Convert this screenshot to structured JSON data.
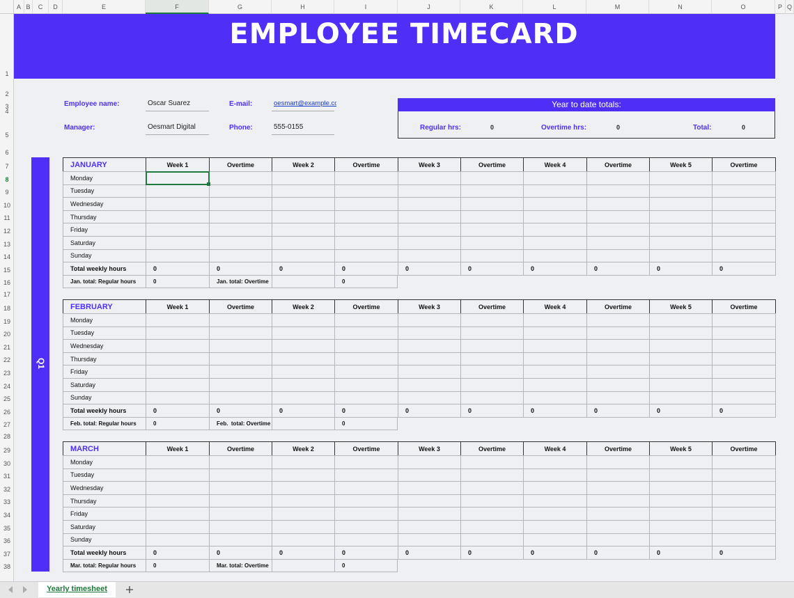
{
  "column_headers": [
    "A",
    "B",
    "C",
    "D",
    "E",
    "F",
    "G",
    "H",
    "I",
    "J",
    "K",
    "L",
    "M",
    "N",
    "O",
    "P",
    "Q"
  ],
  "row_headers": [
    1,
    2,
    3,
    4,
    5,
    6,
    7,
    8,
    9,
    10,
    11,
    12,
    13,
    14,
    15,
    16,
    17,
    18,
    19,
    20,
    21,
    22,
    23,
    24,
    25,
    26,
    27,
    28,
    29,
    30,
    31,
    32,
    33,
    34,
    35,
    36,
    37,
    38
  ],
  "title": "EMPLOYEE TIMECARD",
  "employee": {
    "name_label": "Employee name:",
    "name": "Oscar Suarez",
    "email_label": "E-mail:",
    "email": "oesmart@example.com",
    "manager_label": "Manager:",
    "manager": "Oesmart Digital",
    "phone_label": "Phone:",
    "phone": "555-0155"
  },
  "ytd": {
    "title": "Year to date totals:",
    "regular_label": "Regular hrs:",
    "regular": 0,
    "overtime_label": "Overtime hrs:",
    "overtime": 0,
    "total_label": "Total:",
    "total": 0
  },
  "quarter": "Q1",
  "months": [
    {
      "name": "JANUARY",
      "columns": [
        "Week 1",
        "Overtime",
        "Week 2",
        "Overtime",
        "Week 3",
        "Overtime",
        "Week 4",
        "Overtime",
        "Week 5",
        "Overtime"
      ],
      "days": [
        "Monday",
        "Tuesday",
        "Wednesday",
        "Thursday",
        "Friday",
        "Saturday",
        "Sunday"
      ],
      "total_label": "Total weekly hours",
      "totals": [
        0,
        0,
        0,
        0,
        0,
        0,
        0,
        0,
        0,
        0
      ],
      "regular_label": "Jan. total: Regular hours",
      "regular": 0,
      "overtime_label": "Jan. total: Overtime",
      "overtime": 0
    },
    {
      "name": "FEBRUARY",
      "columns": [
        "Week 1",
        "Overtime",
        "Week 2",
        "Overtime",
        "Week 3",
        "Overtime",
        "Week 4",
        "Overtime",
        "Week 5",
        "Overtime"
      ],
      "days": [
        "Monday",
        "Tuesday",
        "Wednesday",
        "Thursday",
        "Friday",
        "Saturday",
        "Sunday"
      ],
      "total_label": "Total weekly hours",
      "totals": [
        0,
        0,
        0,
        0,
        0,
        0,
        0,
        0,
        0,
        0
      ],
      "regular_label": "Feb. total: Regular hours",
      "regular": 0,
      "overtime_label": "Feb.  total: Overtime",
      "overtime": 0
    },
    {
      "name": "MARCH",
      "columns": [
        "Week 1",
        "Overtime",
        "Week 2",
        "Overtime",
        "Week 3",
        "Overtime",
        "Week 4",
        "Overtime",
        "Week 5",
        "Overtime"
      ],
      "days": [
        "Monday",
        "Tuesday",
        "Wednesday",
        "Thursday",
        "Friday",
        "Saturday",
        "Sunday"
      ],
      "total_label": "Total weekly hours",
      "totals": [
        0,
        0,
        0,
        0,
        0,
        0,
        0,
        0,
        0,
        0
      ],
      "regular_label": "Mar. total: Regular hours",
      "regular": 0,
      "overtime_label": "Mar. total: Overtime",
      "overtime": 0
    }
  ],
  "sheet_tab": "Yearly timesheet"
}
